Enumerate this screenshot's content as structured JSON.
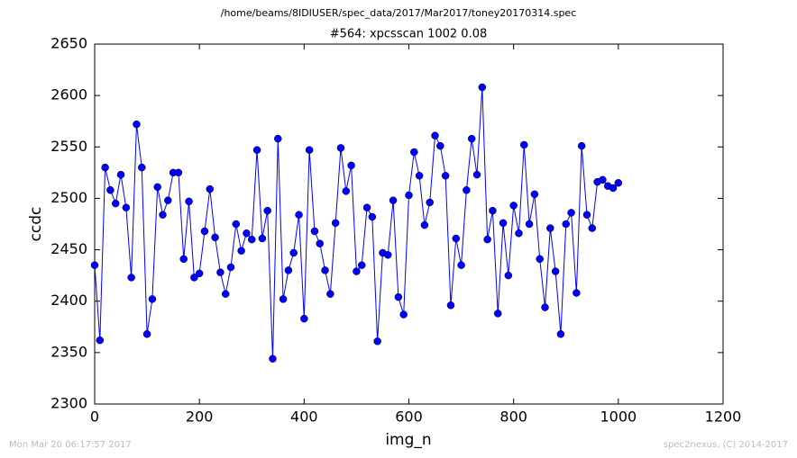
{
  "header": "/home/beams/8IDIUSER/spec_data/2017/Mar2017/toney20170314.spec",
  "footer": {
    "left": "Mon Mar 20 06:17:57 2017",
    "right": "spec2nexus, (C) 2014-2017"
  },
  "chart_data": {
    "type": "line",
    "title": "#564: xpcsscan 1002 0.08",
    "x_label": "img_n",
    "y_label": "ccdc",
    "xlim": [
      0,
      1200
    ],
    "xticks": [
      0,
      200,
      400,
      600,
      800,
      1000,
      1200
    ],
    "ylim": [
      2300,
      2650
    ],
    "yticks": [
      2300,
      2350,
      2400,
      2450,
      2500,
      2550,
      2600,
      2650
    ],
    "grid": false,
    "series": [
      {
        "color": "#0000ff",
        "x": [
          0,
          10,
          20,
          30,
          40,
          50,
          60,
          70,
          80,
          90,
          100,
          110,
          120,
          130,
          140,
          150,
          160,
          170,
          180,
          190,
          200,
          210,
          220,
          230,
          240,
          250,
          260,
          270,
          280,
          290,
          300,
          310,
          320,
          330,
          340,
          350,
          360,
          370,
          380,
          390,
          400,
          410,
          420,
          430,
          440,
          450,
          460,
          470,
          480,
          490,
          500,
          510,
          520,
          530,
          540,
          550,
          560,
          570,
          580,
          590,
          600,
          610,
          620,
          630,
          640,
          650,
          660,
          670,
          680,
          690,
          700,
          710,
          720,
          730,
          740,
          750,
          760,
          770,
          780,
          790,
          800,
          810,
          820,
          830,
          840,
          850,
          860,
          870,
          880,
          890,
          900,
          910,
          920,
          930,
          940,
          950,
          960,
          970,
          980,
          990,
          1000
        ],
        "values": [
          2435,
          2362,
          2530,
          2508,
          2495,
          2523,
          2491,
          2423,
          2572,
          2530,
          2368,
          2402,
          2511,
          2484,
          2498,
          2525,
          2525,
          2441,
          2497,
          2423,
          2427,
          2468,
          2509,
          2462,
          2428,
          2407,
          2433,
          2475,
          2449,
          2466,
          2460,
          2547,
          2461,
          2488,
          2344,
          2558,
          2402,
          2430,
          2447,
          2484,
          2383,
          2547,
          2468,
          2456,
          2430,
          2407,
          2476,
          2549,
          2507,
          2532,
          2429,
          2435,
          2491,
          2482,
          2361,
          2447,
          2445,
          2498,
          2404,
          2387,
          2503,
          2545,
          2522,
          2474,
          2496,
          2561,
          2551,
          2522,
          2396,
          2461,
          2435,
          2508,
          2558,
          2523,
          2608,
          2460,
          2488,
          2388,
          2476,
          2425,
          2493,
          2466,
          2552,
          2475,
          2504,
          2441,
          2394,
          2471,
          2429,
          2368,
          2475,
          2486,
          2408,
          2551,
          2484,
          2471,
          2516,
          2518,
          2512,
          2510,
          2515
        ]
      }
    ]
  }
}
